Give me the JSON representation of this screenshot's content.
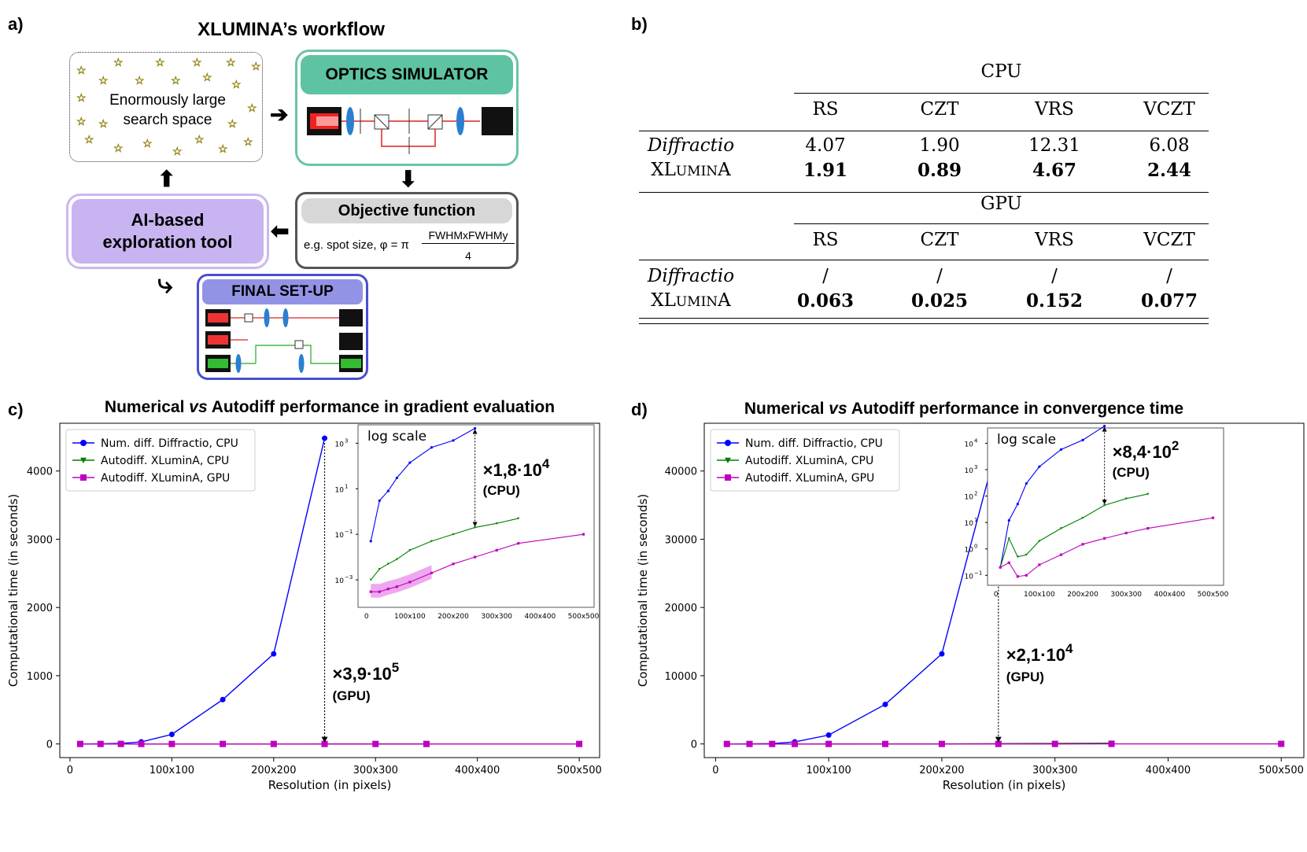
{
  "panels": {
    "a": "a)",
    "b": "b)",
    "c": "c)",
    "d": "d)"
  },
  "workflow": {
    "title": "XLUMINA’s workflow",
    "search_space": "Enormously large search space",
    "optics_simulator": "OPTICS SIMULATOR",
    "objective_title": "Objective function",
    "objective_text": "e.g. spot size, φ = π",
    "objective_num": "FWHMxFWHMy",
    "objective_den": "4",
    "ai_tool": "AI-based exploration tool",
    "final_setup": "FINAL SET-UP"
  },
  "table": {
    "cpu_header": "CPU",
    "gpu_header": "GPU",
    "columns": [
      "RS",
      "CZT",
      "VRS",
      "VCZT"
    ],
    "cpu_rows": [
      {
        "label": "Diffractio",
        "values": [
          "4.07",
          "1.90",
          "12.31",
          "6.08"
        ]
      },
      {
        "label": "XLuminA",
        "values": [
          "1.91",
          "0.89",
          "4.67",
          "2.44"
        ]
      }
    ],
    "gpu_rows": [
      {
        "label": "Diffractio",
        "values": [
          "/",
          "/",
          "/",
          "/"
        ]
      },
      {
        "label": "XLuminA",
        "values": [
          "0.063",
          "0.025",
          "0.152",
          "0.077"
        ]
      }
    ]
  },
  "colors": {
    "cpu_diffractio": "#0000ff",
    "cpu_xlumina": "#008000",
    "gpu_xlumina": "#bf00bf"
  },
  "chart_data": [
    {
      "type": "line",
      "title": "Numerical vs Autodiff performance in gradient evaluation",
      "xlabel": "Resolution (in pixels)",
      "ylabel": "Computational time (in seconds)",
      "x": [
        10,
        30,
        50,
        70,
        100,
        150,
        200,
        250,
        300,
        350,
        500
      ],
      "xticks": [
        0,
        100,
        200,
        300,
        400,
        500
      ],
      "xtick_labels": [
        "0",
        "100x100",
        "200x200",
        "300x300",
        "400x400",
        "500x500"
      ],
      "yticks": [
        0,
        1000,
        2000,
        3000,
        4000
      ],
      "xlim": [
        -10,
        520
      ],
      "ylim": [
        -200,
        4700
      ],
      "series": [
        {
          "name": "Num. diff. Diffractio, CPU",
          "x": [
            10,
            30,
            50,
            70,
            100,
            150,
            200,
            250
          ],
          "values": [
            0.05,
            3,
            8,
            30,
            140,
            650,
            1320,
            4480
          ]
        },
        {
          "name": "Autodiff. XLuminA, CPU",
          "x": [
            10,
            30,
            50,
            70,
            100,
            150,
            200,
            250,
            300,
            350
          ],
          "values": [
            0.001,
            0.003,
            0.005,
            0.008,
            0.02,
            0.05,
            0.1,
            0.2,
            0.3,
            0.5
          ]
        },
        {
          "name": "Autodiff. XLuminA, GPU",
          "x": [
            10,
            30,
            50,
            70,
            100,
            150,
            200,
            250,
            300,
            350,
            500
          ],
          "values": [
            0.0003,
            0.0003,
            0.0004,
            0.0005,
            0.0008,
            0.002,
            0.005,
            0.01,
            0.02,
            0.04,
            0.1
          ]
        }
      ],
      "annotation_main": {
        "text": "×3,9·10",
        "exp": "5",
        "sub": "(GPU)"
      },
      "inset": {
        "label": "log scale",
        "xticks": [
          0,
          100,
          200,
          300,
          400,
          500
        ],
        "xtick_labels": [
          "0",
          "100x100",
          "200x200",
          "300x300",
          "400x400",
          "500x500"
        ],
        "yticks": [
          -3,
          -1,
          1,
          3
        ],
        "ytick_labels": [
          "10",
          "10",
          "10",
          "10"
        ],
        "ytick_exps": [
          "−3",
          "−1",
          "1",
          "3"
        ],
        "annotation": {
          "text": "×1,8·10",
          "exp": "4",
          "sub": "(CPU)"
        }
      }
    },
    {
      "type": "line",
      "title": "Numerical vs Autodiff performance in convergence time",
      "xlabel": "Resolution (in pixels)",
      "ylabel": "Computational time (in seconds)",
      "x": [
        10,
        30,
        50,
        70,
        100,
        150,
        200,
        250,
        300,
        350,
        500
      ],
      "xticks": [
        0,
        100,
        200,
        300,
        400,
        500
      ],
      "xtick_labels": [
        "0",
        "100x100",
        "200x200",
        "300x300",
        "400x400",
        "500x500"
      ],
      "yticks": [
        0,
        10000,
        20000,
        30000,
        40000
      ],
      "xlim": [
        -10,
        520
      ],
      "ylim": [
        -2000,
        47000
      ],
      "series": [
        {
          "name": "Num. diff. Diffractio, CPU",
          "x": [
            10,
            30,
            50,
            70,
            100,
            150,
            200,
            250
          ],
          "values": [
            0.2,
            12,
            50,
            300,
            1300,
            5800,
            13200,
            44500
          ]
        },
        {
          "name": "Autodiff. XLuminA, CPU",
          "x": [
            10,
            30,
            50,
            70,
            100,
            150,
            200,
            250,
            300,
            350
          ],
          "values": [
            0.2,
            2.5,
            0.5,
            0.6,
            2,
            6,
            15,
            45,
            80,
            120
          ]
        },
        {
          "name": "Autodiff. XLuminA, GPU",
          "x": [
            10,
            30,
            50,
            70,
            100,
            150,
            200,
            250,
            300,
            350,
            500
          ],
          "values": [
            0.2,
            0.3,
            0.09,
            0.1,
            0.25,
            0.6,
            1.5,
            2.5,
            4,
            6,
            15
          ]
        }
      ],
      "annotation_main": {
        "text": "×2,1·10",
        "exp": "4",
        "sub": "(GPU)"
      },
      "inset": {
        "label": "log scale",
        "xticks": [
          0,
          100,
          200,
          300,
          400,
          500
        ],
        "xtick_labels": [
          "0",
          "100x100",
          "200x200",
          "300x300",
          "400x400",
          "500x500"
        ],
        "yticks": [
          -1,
          0,
          1,
          2,
          3,
          4
        ],
        "ytick_labels": [
          "10",
          "10",
          "10",
          "10",
          "10",
          "10"
        ],
        "ytick_exps": [
          "−1",
          "0",
          "1",
          "2",
          "3",
          "4"
        ],
        "annotation": {
          "text": "×8,4·10",
          "exp": "2",
          "sub": "(CPU)"
        }
      }
    }
  ]
}
